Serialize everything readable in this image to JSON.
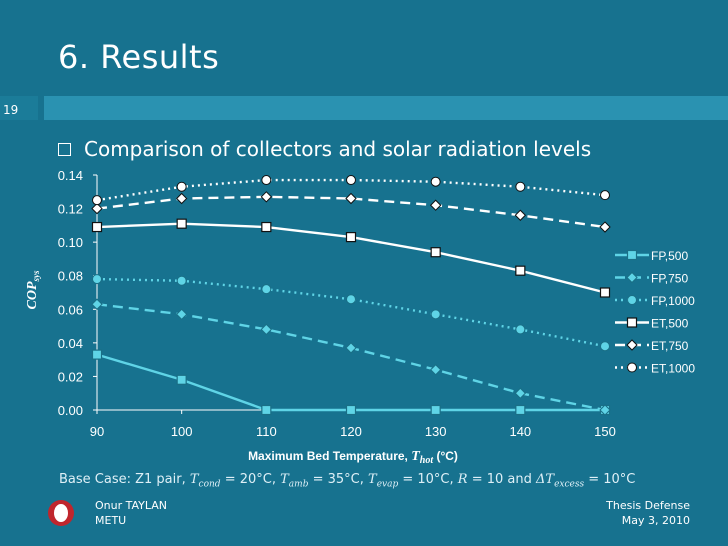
{
  "slide": {
    "title": "6. Results",
    "number": "19",
    "bullet": "Comparison of collectors and solar radiation levels",
    "base_case": "Base Case: Z1 pair, T_cond = 20°C, T_amb = 35°C, T_evap = 10°C, R = 10 and ΔT_excess = 10°C",
    "base_case_parts": {
      "prefix": "Base Case: Z1 pair, ",
      "t": "T",
      "cond": "cond",
      "amb": "amb",
      "evap": "evap",
      "v_cond": " = 20°C, ",
      "v_amb": " = 35°C, ",
      "v_evap": " = 10°C, ",
      "r": "R",
      "v_r": " = 10 and ",
      "delta": "ΔT",
      "excess": "excess",
      "v_excess": " = 10°C"
    },
    "footer_left": [
      "Onur TAYLAN",
      "METU"
    ],
    "footer_right": [
      "Thesis Defense",
      "May 3, 2010"
    ]
  },
  "chart_data": {
    "type": "line",
    "x": [
      90,
      100,
      110,
      120,
      130,
      140,
      150
    ],
    "xlabel_prefix": "Maximum Bed Temperature, ",
    "xlabel_var": "T",
    "xlabel_sub": "hot",
    "xlabel_unit": " (°C)",
    "ylabel_var": "COP",
    "ylabel_sub": "sys",
    "ylim": [
      0,
      0.14
    ],
    "yticks": [
      "0.00",
      "0.02",
      "0.04",
      "0.06",
      "0.08",
      "0.10",
      "0.12",
      "0.14"
    ],
    "xlim": [
      90,
      150
    ],
    "grid": false,
    "legend_position": "right",
    "series": [
      {
        "name": "FP,500",
        "values": [
          0.033,
          0.018,
          0.0,
          0.0,
          0.0,
          0.0,
          0.0
        ],
        "color": "#5fd4e6",
        "dash": "solid",
        "marker": "square"
      },
      {
        "name": "FP,750",
        "values": [
          0.063,
          0.057,
          0.048,
          0.037,
          0.024,
          0.01,
          0.0
        ],
        "color": "#5fd4e6",
        "dash": "dashed",
        "marker": "diamond"
      },
      {
        "name": "FP,1000",
        "values": [
          0.078,
          0.077,
          0.072,
          0.066,
          0.057,
          0.048,
          0.038
        ],
        "color": "#5fd4e6",
        "dash": "dotted",
        "marker": "circle"
      },
      {
        "name": "ET,500",
        "values": [
          0.109,
          0.111,
          0.109,
          0.103,
          0.094,
          0.083,
          0.07
        ],
        "color": "#ffffff",
        "dash": "solid",
        "marker": "square"
      },
      {
        "name": "ET,750",
        "values": [
          0.12,
          0.126,
          0.127,
          0.126,
          0.122,
          0.116,
          0.109
        ],
        "color": "#ffffff",
        "dash": "dashed",
        "marker": "diamond"
      },
      {
        "name": "ET,1000",
        "values": [
          0.125,
          0.133,
          0.137,
          0.137,
          0.136,
          0.133,
          0.128
        ],
        "color": "#ffffff",
        "dash": "dotted",
        "marker": "circle"
      }
    ]
  }
}
